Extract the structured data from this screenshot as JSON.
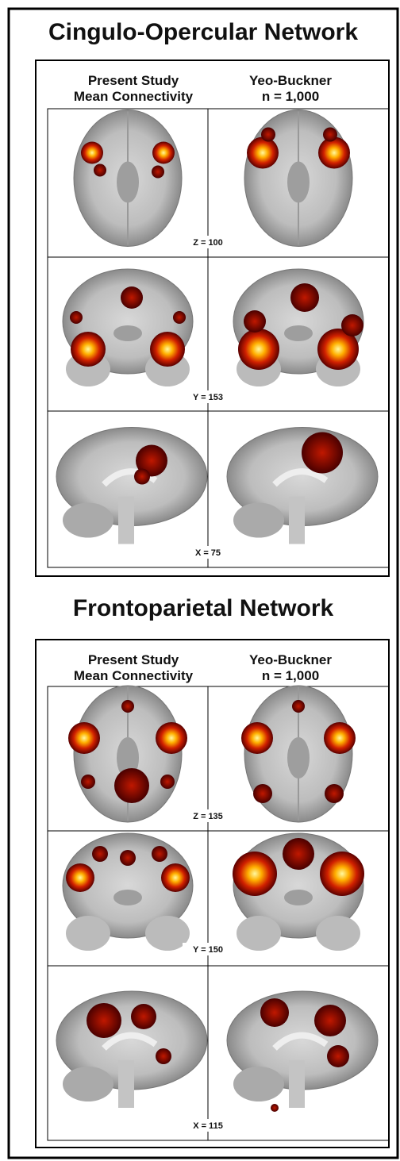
{
  "panels": [
    {
      "title": "Cingulo-Opercular Network",
      "columns": [
        {
          "line1": "Present Study",
          "line2": "Mean Connectivity"
        },
        {
          "line1": "Yeo-Buckner",
          "line2": "n = 1,000"
        }
      ],
      "slices": [
        "Z = 100",
        "Y = 153",
        "X = 75"
      ]
    },
    {
      "title": "Frontoparietal Network",
      "columns": [
        {
          "line1": "Present Study",
          "line2": "Mean Connectivity"
        },
        {
          "line1": "Yeo-Buckner",
          "line2": "n = 1,000"
        }
      ],
      "slices": [
        "Z = 135",
        "Y = 150",
        "X = 115"
      ]
    }
  ]
}
